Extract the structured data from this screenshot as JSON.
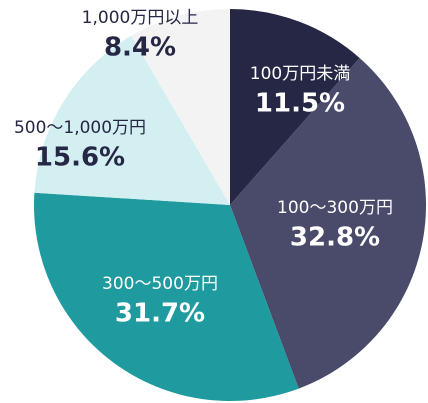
{
  "chart_data": {
    "type": "pie",
    "categories": [
      "100万円未満",
      "100〜300万円",
      "300〜500万円",
      "500〜1,000万円",
      "1,000万円以上"
    ],
    "values": [
      11.5,
      32.8,
      31.7,
      15.6,
      8.4
    ],
    "value_labels": [
      "11.5%",
      "32.8%",
      "31.7%",
      "15.6%",
      "8.4%"
    ],
    "colors": [
      "#252745",
      "#4a4a6b",
      "#1f9a9f",
      "#d4eff2",
      "#f3f3f3"
    ],
    "label_colors": [
      "#ffffff",
      "#ffffff",
      "#ffffff",
      "#252745",
      "#252745"
    ]
  }
}
